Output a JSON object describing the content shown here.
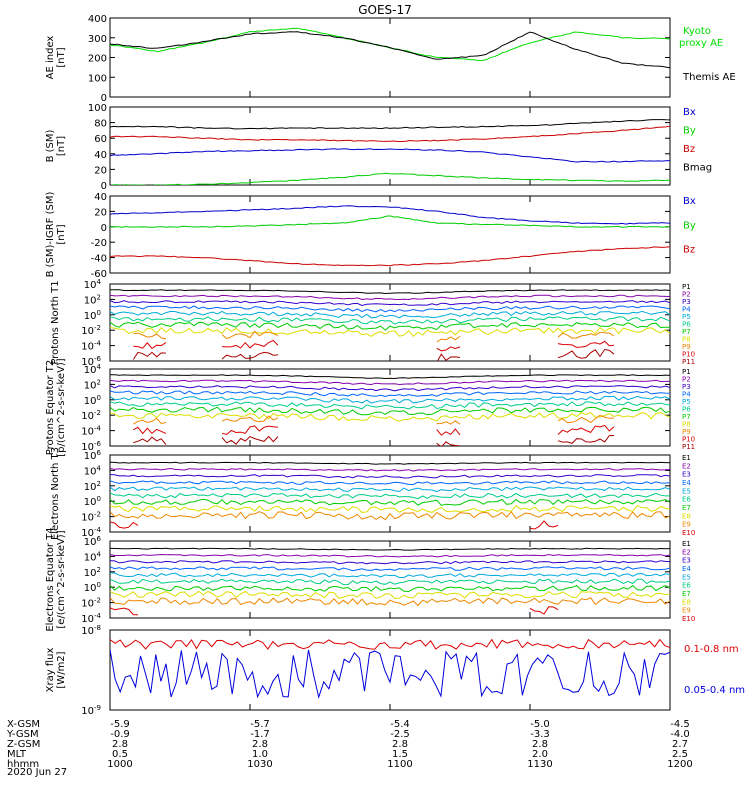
{
  "title": "GOES-17",
  "date": "2020 Jun 27",
  "x_axis": {
    "ticks": [
      "1000",
      "1030",
      "1100",
      "1130",
      "1200"
    ],
    "ephemeris": [
      {
        "label": "X-GSM",
        "values": [
          "-5.9",
          "-5.7",
          "-5.4",
          "-5.0",
          "-4.5"
        ]
      },
      {
        "label": "Y-GSM",
        "values": [
          "-0.9",
          "-1.7",
          "-2.5",
          "-3.3",
          "-4.0"
        ]
      },
      {
        "label": "Z-GSM",
        "values": [
          "2.8",
          "2.8",
          "2.8",
          "2.8",
          "2.7"
        ]
      },
      {
        "label": "MLT",
        "values": [
          "0.5",
          "1.0",
          "1.5",
          "2.0",
          "2.5"
        ]
      },
      {
        "label": "hhmm",
        "values": [
          "1000",
          "1030",
          "1100",
          "1130",
          "1200"
        ]
      }
    ]
  },
  "chart_data": [
    {
      "type": "line",
      "ylabel": "AE index [nT]",
      "ylim": [
        0,
        400
      ],
      "yticks": [
        "0",
        "100",
        "200",
        "300",
        "400"
      ],
      "x": [
        "1000",
        "1010",
        "1020",
        "1030",
        "1040",
        "1050",
        "1100",
        "1110",
        "1120",
        "1130",
        "1140",
        "1150",
        "1200"
      ],
      "series": [
        {
          "name": "Kyoto proxy AE",
          "color": "#00dd00",
          "values": [
            265,
            230,
            275,
            330,
            350,
            300,
            250,
            200,
            185,
            275,
            330,
            300,
            295
          ]
        },
        {
          "name": "Themis AE",
          "color": "#000000",
          "values": [
            270,
            245,
            280,
            320,
            330,
            300,
            250,
            190,
            210,
            330,
            240,
            170,
            150
          ]
        }
      ]
    },
    {
      "type": "line",
      "ylabel": "B (SM) [nT]",
      "ylim": [
        0,
        100
      ],
      "yticks": [
        "0",
        "20",
        "40",
        "60",
        "80",
        "100"
      ],
      "x": [
        "1000",
        "1010",
        "1020",
        "1030",
        "1040",
        "1050",
        "1100",
        "1110",
        "1120",
        "1130",
        "1140",
        "1150",
        "1200"
      ],
      "series": [
        {
          "name": "Bx",
          "color": "#0000cc",
          "values": [
            38,
            40,
            43,
            44,
            45,
            46,
            46,
            45,
            42,
            36,
            30,
            30,
            31
          ]
        },
        {
          "name": "By",
          "color": "#00cc00",
          "values": [
            0,
            0,
            1,
            3,
            6,
            10,
            15,
            12,
            9,
            7,
            6,
            5,
            6
          ]
        },
        {
          "name": "Bz",
          "color": "#cc0000",
          "values": [
            62,
            62,
            60,
            58,
            58,
            57,
            56,
            57,
            59,
            62,
            66,
            70,
            75
          ]
        },
        {
          "name": "Bmag",
          "color": "#000000",
          "values": [
            75,
            75,
            73,
            72,
            73,
            73,
            73,
            74,
            75,
            76,
            79,
            82,
            84
          ]
        }
      ]
    },
    {
      "type": "line",
      "ylabel": "B (SM)-IGRF (SM) [nT]",
      "ylim": [
        -60,
        40
      ],
      "yticks": [
        "-60",
        "-40",
        "-20",
        "0",
        "20",
        "40"
      ],
      "x": [
        "1000",
        "1010",
        "1020",
        "1030",
        "1040",
        "1050",
        "1100",
        "1110",
        "1120",
        "1130",
        "1140",
        "1150",
        "1200"
      ],
      "series": [
        {
          "name": "Bx",
          "color": "#0000cc",
          "values": [
            17,
            18,
            20,
            22,
            24,
            27,
            26,
            20,
            12,
            8,
            5,
            4,
            5
          ]
        },
        {
          "name": "By",
          "color": "#00cc00",
          "values": [
            0,
            0,
            0,
            1,
            3,
            5,
            14,
            5,
            3,
            2,
            0,
            0,
            0
          ]
        },
        {
          "name": "Bz",
          "color": "#cc0000",
          "values": [
            -38,
            -38,
            -40,
            -44,
            -48,
            -50,
            -50,
            -48,
            -44,
            -38,
            -32,
            -28,
            -26
          ]
        }
      ]
    },
    {
      "type": "line",
      "ylabel": "Protons North T1",
      "ylim": [
        "1e-6",
        "1e4"
      ],
      "yticks": [
        "10^-6",
        "10^-4",
        "10^-2",
        "10^0",
        "10^2",
        "10^4"
      ],
      "series": [
        {
          "name": "P1",
          "color": "#000000"
        },
        {
          "name": "P2",
          "color": "#8800aa"
        },
        {
          "name": "P3",
          "color": "#3300cc"
        },
        {
          "name": "P4",
          "color": "#0066ff"
        },
        {
          "name": "P5",
          "color": "#00aadd"
        },
        {
          "name": "P6",
          "color": "#00cc88"
        },
        {
          "name": "P7",
          "color": "#00cc00"
        },
        {
          "name": "P8",
          "color": "#dddd00"
        },
        {
          "name": "P9",
          "color": "#ee8800"
        },
        {
          "name": "P10",
          "color": "#dd0000"
        },
        {
          "name": "P11",
          "color": "#aa0000"
        }
      ]
    },
    {
      "type": "line",
      "ylabel": "Protons Equator T2 [p/(cm^2-s-sr-keV)]",
      "ylim": [
        "1e-6",
        "1e4"
      ],
      "yticks": [
        "10^-6",
        "10^-4",
        "10^-2",
        "10^0",
        "10^2",
        "10^4"
      ],
      "series": [
        {
          "name": "P1",
          "color": "#000000"
        },
        {
          "name": "P2",
          "color": "#8800aa"
        },
        {
          "name": "P3",
          "color": "#3300cc"
        },
        {
          "name": "P4",
          "color": "#0066ff"
        },
        {
          "name": "P5",
          "color": "#00aadd"
        },
        {
          "name": "P6",
          "color": "#00cc88"
        },
        {
          "name": "P7",
          "color": "#00cc00"
        },
        {
          "name": "P8",
          "color": "#dddd00"
        },
        {
          "name": "P9",
          "color": "#ee8800"
        },
        {
          "name": "P10",
          "color": "#dd0000"
        },
        {
          "name": "P11",
          "color": "#aa0000"
        }
      ]
    },
    {
      "type": "line",
      "ylabel": "Electrons North T3",
      "ylim": [
        "1e-4",
        "1e6"
      ],
      "yticks": [
        "10^-4",
        "10^-2",
        "10^0",
        "10^2",
        "10^4",
        "10^6"
      ],
      "series": [
        {
          "name": "E1",
          "color": "#000000"
        },
        {
          "name": "E2",
          "color": "#8800aa"
        },
        {
          "name": "E3",
          "color": "#3300cc"
        },
        {
          "name": "E4",
          "color": "#0066ff"
        },
        {
          "name": "E5",
          "color": "#00aadd"
        },
        {
          "name": "E6",
          "color": "#00cc88"
        },
        {
          "name": "E7",
          "color": "#00cc00"
        },
        {
          "name": "E8",
          "color": "#dddd00"
        },
        {
          "name": "E9",
          "color": "#ee8800"
        },
        {
          "name": "E10",
          "color": "#dd0000"
        }
      ]
    },
    {
      "type": "line",
      "ylabel": "Electrons Equator T4 [e/(cm^2-s-sr-keV)]",
      "ylim": [
        "1e-4",
        "1e6"
      ],
      "yticks": [
        "10^-4",
        "10^-2",
        "10^0",
        "10^2",
        "10^4",
        "10^6"
      ],
      "series": [
        {
          "name": "E1",
          "color": "#000000"
        },
        {
          "name": "E2",
          "color": "#8800aa"
        },
        {
          "name": "E3",
          "color": "#3300cc"
        },
        {
          "name": "E4",
          "color": "#0066ff"
        },
        {
          "name": "E5",
          "color": "#00aadd"
        },
        {
          "name": "E6",
          "color": "#00cc88"
        },
        {
          "name": "E7",
          "color": "#00cc00"
        },
        {
          "name": "E8",
          "color": "#dddd00"
        },
        {
          "name": "E9",
          "color": "#ee8800"
        },
        {
          "name": "E10",
          "color": "#dd0000"
        }
      ]
    },
    {
      "type": "line",
      "ylabel": "Xray flux [W/m2]",
      "ylim": [
        "1e-9",
        "1e-8"
      ],
      "yticks": [
        "10^-9",
        "10^-8"
      ],
      "series": [
        {
          "name": "0.1-0.8 nm",
          "color": "#dd0000"
        },
        {
          "name": "0.05-0.4 nm",
          "color": "#0000dd"
        }
      ]
    }
  ]
}
